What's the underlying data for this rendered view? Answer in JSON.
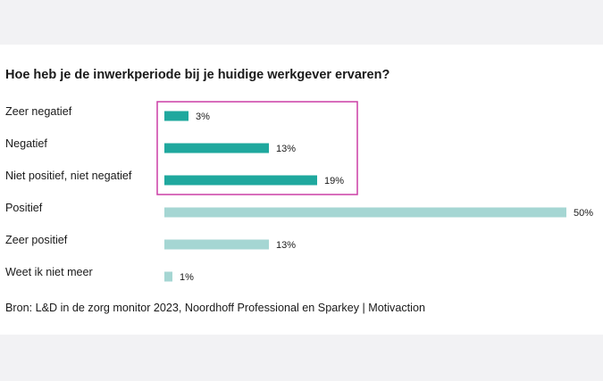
{
  "colors": {
    "highlight_bar": "#1fa89e",
    "other_bar": "#a5d6d3",
    "highlight_box": "#cc3fa6"
  },
  "chart_data": {
    "type": "bar",
    "orientation": "horizontal",
    "title": "Hoe heb je de inwerkperiode bij je huidige werkgever ervaren?",
    "categories": [
      "Zeer negatief",
      "Negatief",
      "Niet positief, niet negatief",
      "Positief",
      "Zeer positief",
      "Weet ik niet meer"
    ],
    "values": [
      3,
      13,
      19,
      50,
      13,
      1
    ],
    "value_labels": [
      "3%",
      "13%",
      "19%",
      "50%",
      "13%",
      "1%"
    ],
    "unit": "%",
    "highlighted_categories": [
      "Zeer negatief",
      "Negatief",
      "Niet positief, niet negatief"
    ],
    "xlim": [
      0,
      50
    ],
    "grid": false,
    "legend": "none"
  },
  "source": "Bron: L&D in de zorg monitor 2023, Noordhoff Professional en Sparkey | Motivaction"
}
